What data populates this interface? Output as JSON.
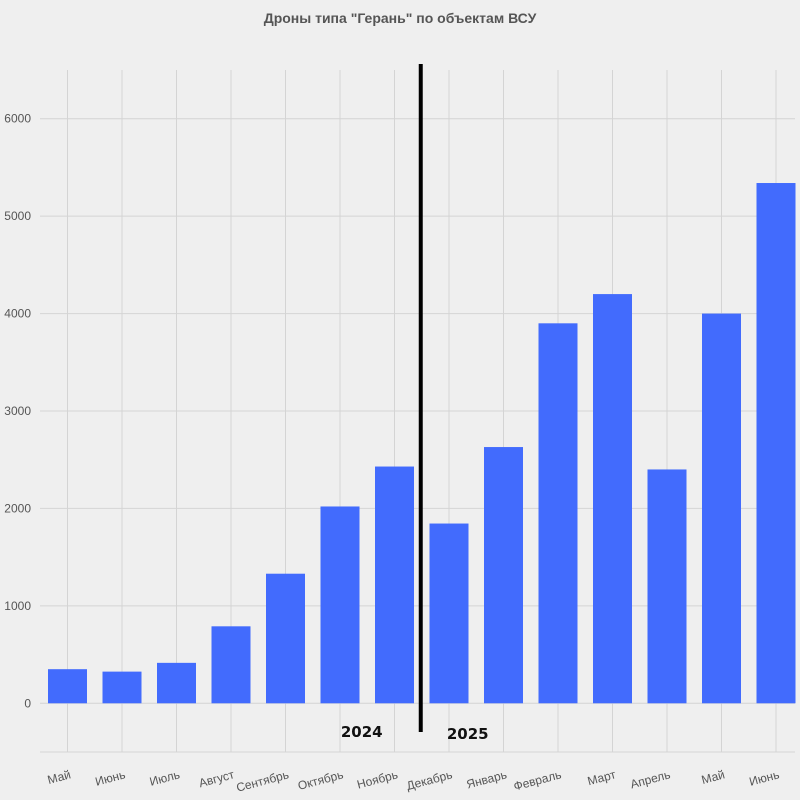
{
  "chart_data": {
    "type": "bar",
    "title": "Дроны типа \"Герань\" по объектам ВСУ",
    "xlabel": "",
    "ylabel": "",
    "categories": [
      "Май",
      "Июнь",
      "Июль",
      "Август",
      "Сентябрь",
      "Октябрь",
      "Ноябрь",
      "Декабрь",
      "Январь",
      "Февраль",
      "Март",
      "Апрель",
      "Май",
      "Июнь"
    ],
    "values": [
      350,
      325,
      415,
      790,
      1330,
      2020,
      2430,
      1845,
      2630,
      3900,
      4200,
      2400,
      4000,
      5340
    ],
    "ylim": [
      -500,
      6500
    ],
    "yticks": [
      0,
      1000,
      2000,
      3000,
      4000,
      5000,
      6000
    ],
    "grid": true,
    "bar_color": "#426bfd",
    "annotations": {
      "divider_between": [
        "Ноябрь",
        "Декабрь"
      ],
      "year_left": "2024",
      "year_right": "2025"
    }
  }
}
